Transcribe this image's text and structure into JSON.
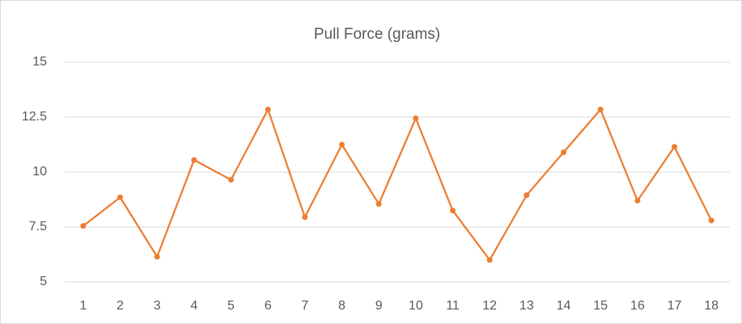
{
  "chart_data": {
    "type": "line",
    "title": "Pull Force (grams)",
    "categories": [
      "1",
      "2",
      "3",
      "4",
      "5",
      "6",
      "7",
      "8",
      "9",
      "10",
      "11",
      "12",
      "13",
      "14",
      "15",
      "16",
      "17",
      "18"
    ],
    "values": [
      7.55,
      8.85,
      6.15,
      10.55,
      9.65,
      12.85,
      7.95,
      11.25,
      8.55,
      12.45,
      8.25,
      6,
      8.95,
      10.9,
      12.85,
      8.7,
      11.15,
      7.8
    ],
    "color": "#ed7d31",
    "ylim": [
      5,
      15
    ],
    "yticks": [
      5,
      7.5,
      10,
      12.5,
      15
    ],
    "grid": true
  }
}
